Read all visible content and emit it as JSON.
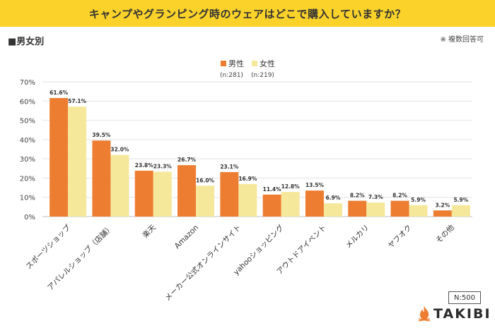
{
  "header": {
    "title": "キャンプやグランピング時のウェアはどこで購入していますか？",
    "subtitle": "■男女別",
    "note": "※ 複数回答可"
  },
  "sample_size": "N:500",
  "logo_text": "TAKIBI",
  "colors": {
    "male": "#ed7d31",
    "female": "#f5e89b",
    "title_bg": "#fad22a",
    "logo_flame": "#ed7d31"
  },
  "chart_data": {
    "type": "bar",
    "title": "",
    "xlabel": "",
    "ylabel": "",
    "ylim": [
      0,
      70
    ],
    "yticks": [
      "0%",
      "10%",
      "20%",
      "30%",
      "40%",
      "50%",
      "60%",
      "70%"
    ],
    "grid": true,
    "legend_position": "top-center",
    "categories": [
      "スポーツショップ",
      "アパレルショップ（店舗）",
      "楽天",
      "Amazon",
      "メーカー公式オンラインサイト",
      "yahooショッピング",
      "アウトドアイベント",
      "メルカリ",
      "ヤフオク",
      "その他"
    ],
    "series": [
      {
        "name": "男性",
        "sample": "(n:281)",
        "values": [
          61.6,
          39.5,
          23.8,
          26.7,
          23.1,
          11.4,
          13.5,
          8.2,
          8.2,
          3.2
        ],
        "labels": [
          "61.6%",
          "39.5%",
          "23.8%",
          "26.7%",
          "23.1%",
          "11.4%",
          "13.5%",
          "8.2%",
          "8.2%",
          "3.2%"
        ]
      },
      {
        "name": "女性",
        "sample": "(n:219)",
        "values": [
          57.1,
          32.0,
          23.3,
          16.0,
          16.9,
          12.8,
          6.9,
          7.3,
          5.9,
          5.9
        ],
        "labels": [
          "57.1%",
          "32.0%",
          "23.3%",
          "16.0%",
          "16.9%",
          "12.8%",
          "6.9%",
          "7.3%",
          "5.9%",
          "5.9%"
        ]
      }
    ]
  }
}
